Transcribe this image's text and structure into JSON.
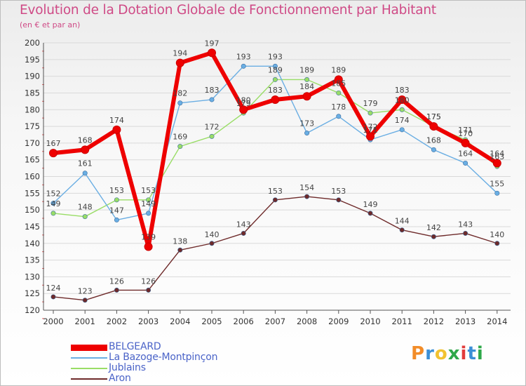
{
  "title": "Evolution de la Dotation Globale de Fonctionnement par Habitant",
  "subtitle": "(en € et par an)",
  "logo_text": "Proxiti",
  "chart_data": {
    "type": "line",
    "title": "Evolution de la Dotation Globale de Fonctionnement par Habitant",
    "subtitle": "(en € et par an)",
    "xlabel": "",
    "ylabel": "",
    "ylim": [
      120,
      200
    ],
    "yticks": [
      "120",
      "125",
      "130",
      "135",
      "140",
      "145",
      "150",
      "155",
      "160",
      "165",
      "170",
      "175",
      "180",
      "185",
      "190",
      "195",
      "200"
    ],
    "x": [
      "2000",
      "2001",
      "2002",
      "2003",
      "2004",
      "2005",
      "2006",
      "2007",
      "2008",
      "2009",
      "2010",
      "2011",
      "2012",
      "2013",
      "2014"
    ],
    "grid": "horizontal",
    "legend_position": "bottom-left",
    "series": [
      {
        "name": "BELGEARD",
        "color": "#ee0000",
        "values": [
          167,
          168,
          174,
          139,
          194,
          197,
          180,
          183,
          184,
          189,
          172,
          183,
          175,
          170,
          164
        ],
        "labels": [
          "167",
          "168",
          "174",
          "139",
          "194",
          "197",
          "180",
          "183",
          "184",
          "189",
          "172",
          "183",
          "175",
          "170",
          "164"
        ]
      },
      {
        "name": "La Bazoge-Montpinçon",
        "color": "#6aaee3",
        "values": [
          152,
          161,
          147,
          149,
          182,
          183,
          193,
          193,
          173,
          178,
          171,
          174,
          168,
          164,
          155
        ],
        "labels": [
          "152",
          "161",
          "147",
          "149",
          "182",
          "183",
          "193",
          "193",
          "173",
          "178",
          "171",
          "174",
          "168",
          "164",
          "155"
        ]
      },
      {
        "name": "Jublains",
        "color": "#99dd66",
        "values": [
          149,
          148,
          153,
          153,
          169,
          172,
          179,
          189,
          189,
          185,
          179,
          180,
          175,
          171,
          163
        ],
        "labels": [
          "149",
          "148",
          "153",
          "153",
          "169",
          "172",
          "179",
          "189",
          "189",
          "185",
          "179",
          "180",
          "175",
          "171",
          "163"
        ]
      },
      {
        "name": "Aron",
        "color": "#6e2a2a",
        "values": [
          124,
          123,
          126,
          126,
          138,
          140,
          143,
          153,
          154,
          153,
          149,
          144,
          142,
          143,
          140
        ],
        "labels": [
          "124",
          "123",
          "126",
          "126",
          "138",
          "140",
          "143",
          "153",
          "154",
          "153",
          "149",
          "144",
          "142",
          "143",
          "140"
        ]
      }
    ]
  }
}
